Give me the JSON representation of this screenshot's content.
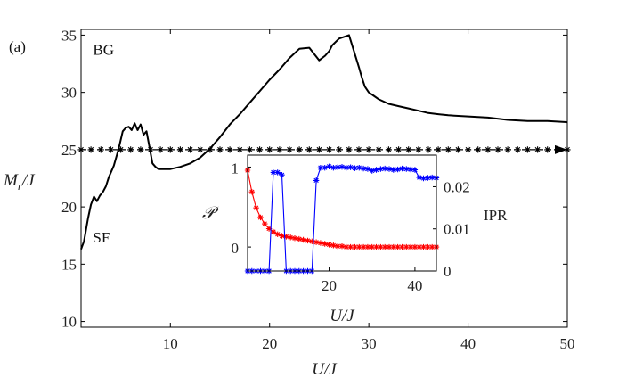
{
  "panel_label": "(a)",
  "chart_data": [
    {
      "type": "line",
      "xlabel": "U/J",
      "ylabel": "M_r/J",
      "xlim": [
        1,
        50
      ],
      "ylim": [
        9.5,
        35.5
      ],
      "xticks": [
        "10",
        "20",
        "30",
        "40",
        "50"
      ],
      "xtick_values": [
        10,
        20,
        30,
        40,
        50
      ],
      "yticks": [
        "10",
        "15",
        "20",
        "25",
        "30",
        "35"
      ],
      "ytick_values": [
        10,
        15,
        20,
        25,
        30,
        35
      ],
      "annotations": [
        {
          "text": "BG",
          "x": 2.2,
          "y": 33.3
        },
        {
          "text": "SF",
          "x": 2.2,
          "y": 16.9
        }
      ],
      "series": [
        {
          "name": "M_r/J",
          "color": "#000000",
          "x": [
            1,
            1.3,
            1.7,
            2,
            2.3,
            2.6,
            2.9,
            3.2,
            3.5,
            3.8,
            4.3,
            4.8,
            5.2,
            5.5,
            5.8,
            6.1,
            6.4,
            6.7,
            7,
            7.3,
            7.6,
            7.9,
            8.2,
            8.5,
            8.8,
            9.1,
            9.5,
            10,
            11,
            12,
            13,
            14,
            15,
            16,
            17,
            18,
            19,
            20,
            21,
            22,
            23,
            24,
            25,
            25.6,
            26,
            26.3,
            27,
            28,
            29,
            29.3,
            29.6,
            30,
            30.5,
            31,
            32,
            33,
            34,
            35,
            36,
            37,
            38,
            40,
            42,
            44,
            46,
            48,
            50
          ],
          "y": [
            16.3,
            17,
            19,
            20.2,
            20.9,
            20.5,
            21,
            21.3,
            21.8,
            22.6,
            23.6,
            25.1,
            26.6,
            26.9,
            27.0,
            26.7,
            27.3,
            26.7,
            27.2,
            26.3,
            26.6,
            25.2,
            23.8,
            23.5,
            23.3,
            23.3,
            23.3,
            23.3,
            23.5,
            23.8,
            24.3,
            25.1,
            26.1,
            27.2,
            28.1,
            29.1,
            30.1,
            31.1,
            32.0,
            33.0,
            33.8,
            33.9,
            32.8,
            33.2,
            33.6,
            34.1,
            34.7,
            35.0,
            32.2,
            31.3,
            30.5,
            30.0,
            29.7,
            29.4,
            29.0,
            28.8,
            28.6,
            28.4,
            28.2,
            28.1,
            28.0,
            27.9,
            27.8,
            27.6,
            27.5,
            27.5,
            27.4
          ]
        },
        {
          "name": "reference",
          "color": "#000000",
          "marker": "*",
          "x": [
            1,
            50
          ],
          "y": [
            25,
            25
          ]
        }
      ]
    },
    {
      "type": "line",
      "inset": true,
      "xlabel": "U/J",
      "ylabel_left": "𝒫",
      "ylabel_right": "IPR",
      "xlim": [
        1,
        45
      ],
      "ylim_left": [
        -0.3,
        1.15
      ],
      "ylim_right": [
        0,
        0.0275
      ],
      "xticks": [
        "20",
        "40"
      ],
      "xtick_values": [
        20,
        40
      ],
      "yticks_left": [
        "0",
        "1"
      ],
      "ytick_values_left": [
        0,
        1
      ],
      "yticks_right": [
        "0",
        "0.01",
        "0.02"
      ],
      "ytick_values_right": [
        0,
        0.01,
        0.02
      ],
      "series": [
        {
          "name": "𝒫",
          "axis": "left",
          "color": "#ff0000",
          "marker": "*",
          "x": [
            1,
            2,
            3,
            4,
            5,
            6,
            7,
            8,
            9,
            10,
            11,
            12,
            13,
            14,
            15,
            16,
            17,
            18,
            19,
            20,
            21,
            22,
            23,
            24,
            25,
            26,
            27,
            28,
            29,
            30,
            31,
            32,
            33,
            34,
            35,
            36,
            37,
            38,
            39,
            40,
            41,
            42,
            43,
            44,
            45
          ],
          "y": [
            0.96,
            0.69,
            0.49,
            0.37,
            0.29,
            0.23,
            0.19,
            0.16,
            0.14,
            0.13,
            0.12,
            0.11,
            0.1,
            0.09,
            0.08,
            0.07,
            0.06,
            0.05,
            0.04,
            0.03,
            0.02,
            0.01,
            0.01,
            0.0,
            0.0,
            0.0,
            0.0,
            0.0,
            0.0,
            0.0,
            0.0,
            0.0,
            0.0,
            0.0,
            0.0,
            0.0,
            0.0,
            0.0,
            0.0,
            0.0,
            0.0,
            0.0,
            0.0,
            0.0,
            0.0
          ]
        },
        {
          "name": "IPR",
          "axis": "right",
          "color": "#0000ff",
          "marker": "*",
          "x": [
            1,
            2,
            3,
            4,
            5,
            6,
            7,
            8,
            9,
            10,
            11,
            12,
            13,
            14,
            15,
            16,
            17,
            18,
            19,
            20,
            21,
            22,
            23,
            24,
            25,
            26,
            27,
            28,
            29,
            30,
            31,
            32,
            33,
            34,
            35,
            36,
            37,
            38,
            39,
            40,
            41,
            42,
            43,
            44,
            45
          ],
          "y": [
            0.0,
            0.0,
            0.0,
            0.0,
            0.0,
            0.0,
            0.0234,
            0.0234,
            0.0228,
            0.0,
            0.0,
            0.0,
            0.0,
            0.0,
            0.0,
            0.0,
            0.0215,
            0.0245,
            0.0245,
            0.0248,
            0.0245,
            0.0246,
            0.0247,
            0.0245,
            0.0246,
            0.0244,
            0.0245,
            0.0243,
            0.0242,
            0.0238,
            0.024,
            0.0242,
            0.0243,
            0.0242,
            0.024,
            0.0241,
            0.0243,
            0.0242,
            0.0241,
            0.024,
            0.0222,
            0.022,
            0.0221,
            0.0222,
            0.0221
          ]
        }
      ]
    }
  ]
}
